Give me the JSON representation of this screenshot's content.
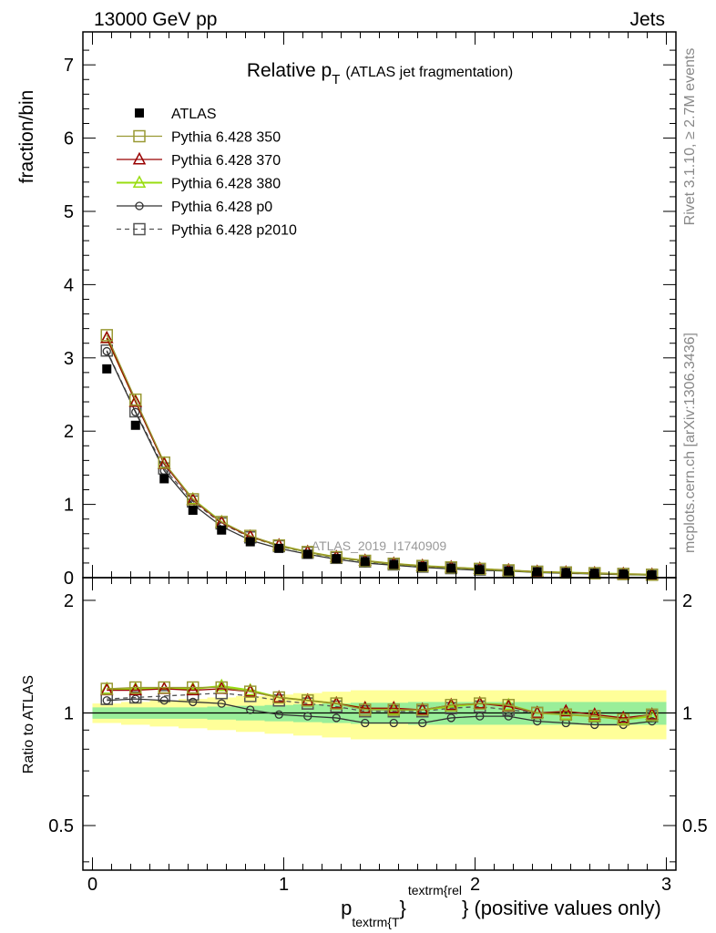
{
  "header": {
    "energy": "13000 GeV pp",
    "process": "Jets"
  },
  "side_labels": {
    "rivet": "Rivet 3.1.10, ≥ 2.7M events",
    "source": "mcplots.cern.ch [arXiv:1306.3436]"
  },
  "watermark": "ATLAS_2019_I1740909",
  "colors": {
    "atlas": "#000000",
    "p350": "#999933",
    "p370": "#990000",
    "p380": "#99dd11",
    "p0": "#333333",
    "p2010": "#555555",
    "band_inner": "#99ee99",
    "band_outer": "#ffff99"
  },
  "chart_data": {
    "type": "line",
    "title": "Relative p_T (ATLAS jet fragmentation)",
    "title_main": "Relative p",
    "title_sub": "T",
    "title_paren": "(ATLAS jet fragmentation)",
    "xlabel": "p_textrm{T}^textrm{rel} (positive values only)",
    "xlabel_main": "p",
    "xlabel_sub": "textrm{T",
    "xlabel_sup": "textrm{rel",
    "xlabel_rest": "} (positive values only)",
    "xlabel_brace": "}",
    "ylabel": "fraction/bin",
    "ratio_ylabel": "Ratio to ATLAS",
    "xlim": [
      -0.05,
      3.05
    ],
    "ylim": [
      0,
      7.45
    ],
    "ratio_ylim": [
      0.38,
      2.3
    ],
    "ratio_log": true,
    "x_ticks": [
      {
        "v": 0,
        "label": "0"
      },
      {
        "v": 1,
        "label": "1"
      },
      {
        "v": 2,
        "label": "2"
      },
      {
        "v": 3,
        "label": "3"
      }
    ],
    "y_ticks": [
      {
        "v": 0,
        "label": "0"
      },
      {
        "v": 1,
        "label": "1"
      },
      {
        "v": 2,
        "label": "2"
      },
      {
        "v": 3,
        "label": "3"
      },
      {
        "v": 4,
        "label": "4"
      },
      {
        "v": 5,
        "label": "5"
      },
      {
        "v": 6,
        "label": "6"
      },
      {
        "v": 7,
        "label": "7"
      }
    ],
    "ratio_ticks": [
      {
        "v": 0.5,
        "label": "0.5"
      },
      {
        "v": 1,
        "label": "1"
      },
      {
        "v": 2,
        "label": "2"
      }
    ],
    "legend_position": "top-left",
    "x": [
      0.075,
      0.225,
      0.375,
      0.525,
      0.675,
      0.825,
      0.975,
      1.125,
      1.275,
      1.425,
      1.575,
      1.725,
      1.875,
      2.025,
      2.175,
      2.325,
      2.475,
      2.625,
      2.775,
      2.925
    ],
    "bin_halfwidth": 0.075,
    "band_inner": [
      0.035,
      0.035,
      0.035,
      0.035,
      0.04,
      0.045,
      0.05,
      0.055,
      0.06,
      0.065,
      0.065,
      0.07,
      0.07,
      0.07,
      0.07,
      0.07,
      0.07,
      0.07,
      0.07,
      0.07
    ],
    "band_outer": [
      0.06,
      0.07,
      0.08,
      0.09,
      0.1,
      0.11,
      0.12,
      0.13,
      0.14,
      0.15,
      0.15,
      0.15,
      0.15,
      0.15,
      0.15,
      0.15,
      0.15,
      0.15,
      0.15,
      0.15
    ],
    "series": [
      {
        "name": "ATLAS",
        "key": "atlas",
        "style": "data",
        "values": [
          2.85,
          2.08,
          1.35,
          0.92,
          0.65,
          0.49,
          0.4,
          0.32,
          0.26,
          0.22,
          0.18,
          0.15,
          0.13,
          0.11,
          0.09,
          0.08,
          0.07,
          0.06,
          0.05,
          0.04
        ]
      },
      {
        "name": "Pythia 6.428 350",
        "key": "p350",
        "style": "solid",
        "marker": "square",
        "values": [
          3.31,
          2.43,
          1.57,
          1.07,
          0.76,
          0.57,
          0.44,
          0.35,
          0.28,
          0.23,
          0.19,
          0.16,
          0.14,
          0.12,
          0.1,
          0.08,
          0.07,
          0.06,
          0.05,
          0.04
        ]
      },
      {
        "name": "Pythia 6.428 370",
        "key": "p370",
        "style": "solid",
        "marker": "triangle",
        "values": [
          3.27,
          2.4,
          1.55,
          1.06,
          0.75,
          0.56,
          0.44,
          0.35,
          0.28,
          0.23,
          0.19,
          0.16,
          0.14,
          0.12,
          0.1,
          0.08,
          0.07,
          0.06,
          0.05,
          0.04
        ]
      },
      {
        "name": "Pythia 6.428 380",
        "key": "p380",
        "style": "solid",
        "marker": "triangle",
        "values": [
          3.27,
          2.41,
          1.56,
          1.07,
          0.76,
          0.56,
          0.44,
          0.35,
          0.28,
          0.23,
          0.19,
          0.16,
          0.14,
          0.12,
          0.1,
          0.08,
          0.07,
          0.06,
          0.05,
          0.04
        ]
      },
      {
        "name": "Pythia 6.428 p0",
        "key": "p0",
        "style": "solid",
        "marker": "circle",
        "values": [
          3.09,
          2.26,
          1.46,
          1.0,
          0.7,
          0.51,
          0.4,
          0.32,
          0.25,
          0.2,
          0.17,
          0.14,
          0.12,
          0.1,
          0.09,
          0.07,
          0.06,
          0.05,
          0.04,
          0.035
        ]
      },
      {
        "name": "Pythia 6.428 p2010",
        "key": "p2010",
        "style": "dashed",
        "marker": "square",
        "values": [
          3.1,
          2.27,
          1.49,
          1.04,
          0.74,
          0.55,
          0.43,
          0.34,
          0.27,
          0.22,
          0.18,
          0.15,
          0.13,
          0.11,
          0.09,
          0.08,
          0.07,
          0.06,
          0.05,
          0.04
        ]
      }
    ],
    "ratios": {
      "p350": [
        1.16,
        1.17,
        1.17,
        1.17,
        1.17,
        1.14,
        1.1,
        1.08,
        1.06,
        1.02,
        1.02,
        1.02,
        1.05,
        1.06,
        1.05,
        1.0,
        0.99,
        0.98,
        0.96,
        0.99
      ],
      "p370": [
        1.15,
        1.15,
        1.16,
        1.15,
        1.16,
        1.14,
        1.1,
        1.08,
        1.06,
        1.03,
        1.03,
        1.02,
        1.05,
        1.06,
        1.04,
        1.0,
        1.01,
        0.99,
        0.97,
        0.99
      ],
      "p380": [
        1.16,
        1.16,
        1.16,
        1.16,
        1.18,
        1.15,
        1.1,
        1.08,
        1.06,
        1.03,
        1.02,
        1.02,
        1.04,
        1.06,
        1.05,
        1.0,
        0.99,
        0.98,
        0.96,
        0.98
      ],
      "p0": [
        1.08,
        1.09,
        1.08,
        1.07,
        1.06,
        1.02,
        0.99,
        0.98,
        0.97,
        0.94,
        0.94,
        0.94,
        0.97,
        0.98,
        0.98,
        0.95,
        0.94,
        0.93,
        0.93,
        0.95
      ],
      "p2010": [
        1.09,
        1.1,
        1.11,
        1.12,
        1.13,
        1.11,
        1.08,
        1.06,
        1.04,
        1.01,
        1.01,
        1.01,
        1.03,
        1.04,
        1.02,
        1.0,
        0.99,
        0.98,
        0.96,
        0.98
      ]
    }
  }
}
